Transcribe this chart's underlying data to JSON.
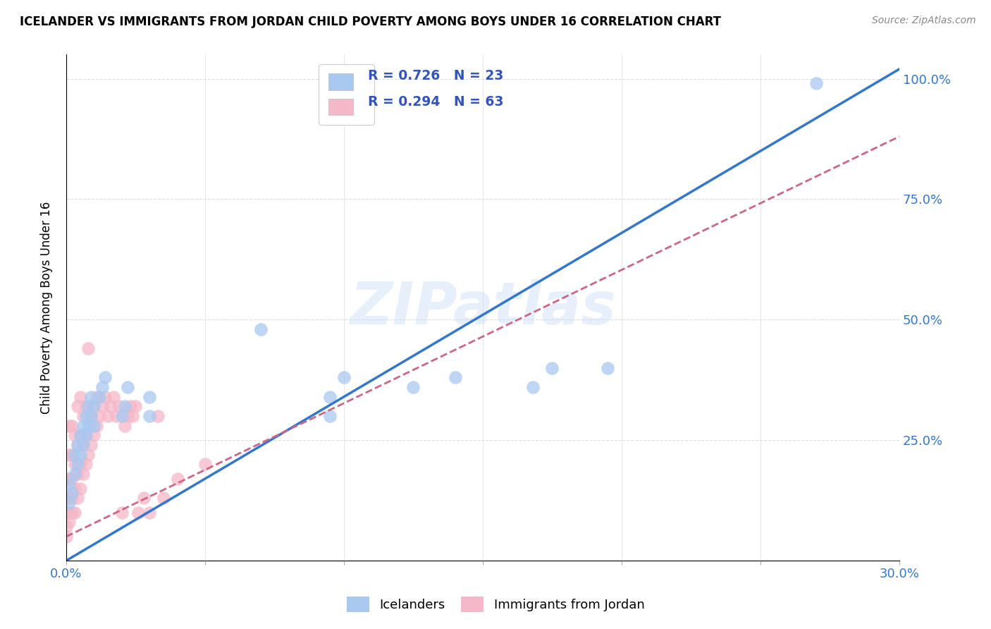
{
  "title": "ICELANDER VS IMMIGRANTS FROM JORDAN CHILD POVERTY AMONG BOYS UNDER 16 CORRELATION CHART",
  "source": "Source: ZipAtlas.com",
  "ylabel": "Child Poverty Among Boys Under 16",
  "xlim": [
    0.0,
    0.3
  ],
  "ylim": [
    0.0,
    1.05
  ],
  "xticks": [
    0.0,
    0.05,
    0.1,
    0.15,
    0.2,
    0.25,
    0.3
  ],
  "xtick_labels": [
    "0.0%",
    "",
    "",
    "",
    "",
    "",
    "30.0%"
  ],
  "yticks": [
    0.0,
    0.25,
    0.5,
    0.75,
    1.0
  ],
  "ytick_labels": [
    "",
    "25.0%",
    "50.0%",
    "75.0%",
    "100.0%"
  ],
  "watermark": "ZIPatlas",
  "blue_color": "#a8c8f0",
  "pink_color": "#f4b8c8",
  "blue_line_color": "#3377cc",
  "pink_line_color": "#cc6688",
  "blue_line_x": [
    0.0,
    0.3
  ],
  "blue_line_y": [
    0.0,
    1.02
  ],
  "pink_line_x": [
    0.0,
    0.3
  ],
  "pink_line_y": [
    0.05,
    0.88
  ],
  "icelanders_x": [
    0.001,
    0.001,
    0.002,
    0.003,
    0.003,
    0.004,
    0.004,
    0.005,
    0.005,
    0.006,
    0.006,
    0.007,
    0.007,
    0.008,
    0.008,
    0.009,
    0.009,
    0.01,
    0.01,
    0.012,
    0.013,
    0.014,
    0.02,
    0.021,
    0.022,
    0.03,
    0.03,
    0.07,
    0.095,
    0.095,
    0.1,
    0.125,
    0.14,
    0.168,
    0.175,
    0.195,
    0.27
  ],
  "icelanders_y": [
    0.12,
    0.16,
    0.14,
    0.18,
    0.22,
    0.2,
    0.24,
    0.22,
    0.26,
    0.24,
    0.28,
    0.26,
    0.3,
    0.28,
    0.32,
    0.3,
    0.34,
    0.28,
    0.32,
    0.34,
    0.36,
    0.38,
    0.3,
    0.32,
    0.36,
    0.3,
    0.34,
    0.48,
    0.3,
    0.34,
    0.38,
    0.36,
    0.38,
    0.36,
    0.4,
    0.4,
    0.99
  ],
  "jordan_x": [
    0.0,
    0.0,
    0.0,
    0.0,
    0.0,
    0.001,
    0.001,
    0.001,
    0.001,
    0.001,
    0.001,
    0.002,
    0.002,
    0.002,
    0.002,
    0.002,
    0.003,
    0.003,
    0.003,
    0.003,
    0.004,
    0.004,
    0.004,
    0.004,
    0.005,
    0.005,
    0.005,
    0.005,
    0.006,
    0.006,
    0.006,
    0.007,
    0.007,
    0.007,
    0.008,
    0.008,
    0.009,
    0.009,
    0.01,
    0.01,
    0.011,
    0.011,
    0.012,
    0.013,
    0.014,
    0.015,
    0.016,
    0.017,
    0.018,
    0.019,
    0.02,
    0.021,
    0.022,
    0.023,
    0.024,
    0.025,
    0.026,
    0.028,
    0.03,
    0.033,
    0.035,
    0.04,
    0.05
  ],
  "jordan_y": [
    0.05,
    0.07,
    0.1,
    0.13,
    0.17,
    0.08,
    0.1,
    0.13,
    0.17,
    0.22,
    0.28,
    0.1,
    0.13,
    0.17,
    0.22,
    0.28,
    0.1,
    0.15,
    0.2,
    0.26,
    0.13,
    0.18,
    0.24,
    0.32,
    0.15,
    0.2,
    0.26,
    0.34,
    0.18,
    0.24,
    0.3,
    0.2,
    0.26,
    0.32,
    0.22,
    0.44,
    0.24,
    0.3,
    0.26,
    0.32,
    0.28,
    0.34,
    0.3,
    0.32,
    0.34,
    0.3,
    0.32,
    0.34,
    0.3,
    0.32,
    0.1,
    0.28,
    0.3,
    0.32,
    0.3,
    0.32,
    0.1,
    0.13,
    0.1,
    0.3,
    0.13,
    0.17,
    0.2
  ],
  "grid_color": "#dddddd",
  "axis_color": "#aaaaaa",
  "tick_color": "#3377cc"
}
